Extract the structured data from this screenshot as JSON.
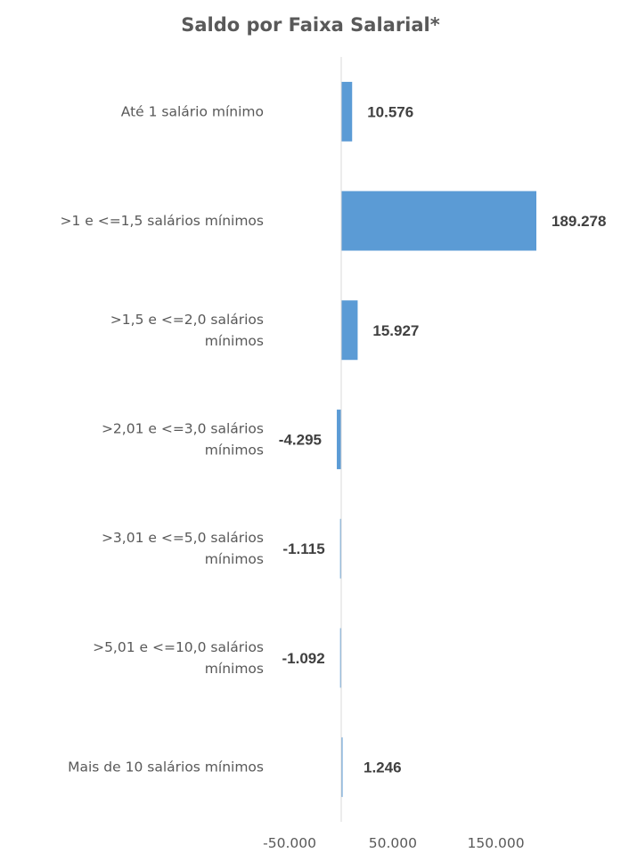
{
  "chart_data": {
    "type": "bar",
    "orientation": "horizontal",
    "title": "Saldo por Faixa Salarial*",
    "categories": [
      [
        "Até 1 salário mínimo"
      ],
      [
        ">1 e <=1,5 salários mínimos"
      ],
      [
        ">1,5 e <=2,0 salários",
        "mínimos"
      ],
      [
        ">2,01 e <=3,0 salários",
        "mínimos"
      ],
      [
        ">3,01 e <=5,0 salários",
        "mínimos"
      ],
      [
        ">5,01 e <=10,0 salários",
        "mínimos"
      ],
      [
        "Mais de 10 salários mínimos"
      ]
    ],
    "values": [
      10576,
      189278,
      15927,
      -4295,
      -1115,
      -1092,
      1246
    ],
    "value_labels": [
      "10.576",
      "189.278",
      "15.927",
      "-4.295",
      "-1.115",
      "-1.092",
      "1.246"
    ],
    "xlim": [
      -50000,
      150000
    ],
    "x_ticks": [
      -50000,
      50000,
      150000
    ],
    "x_tick_labels": [
      "-50.000",
      "50.000",
      "150.000"
    ],
    "xlabel": "",
    "ylabel": "",
    "grid": false,
    "legend": "none",
    "colors": {
      "bar": "#5B9BD5",
      "axis": "#D9D9D9",
      "title": "#595959",
      "text": "#595959",
      "value_label": "#404040"
    }
  }
}
